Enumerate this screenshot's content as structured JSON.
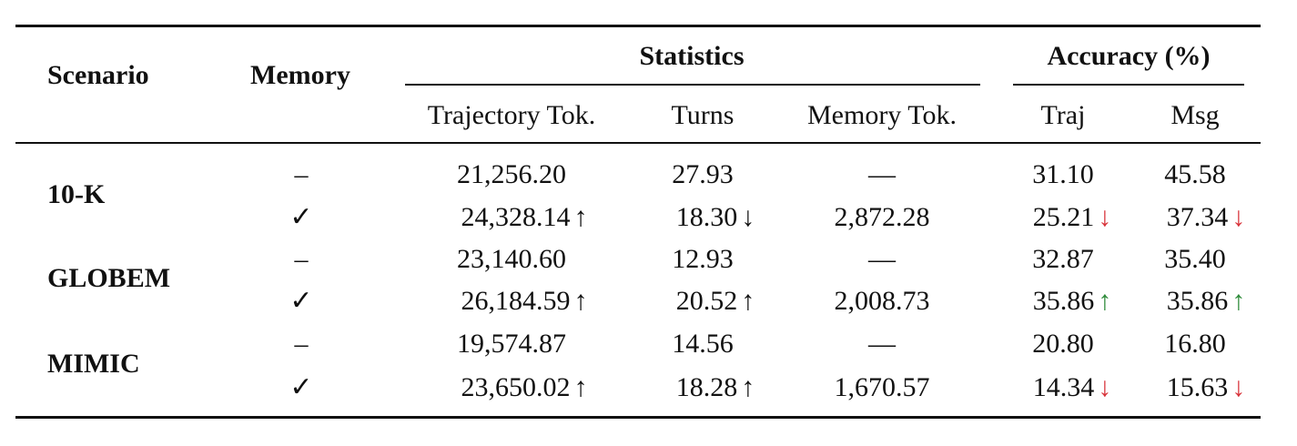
{
  "header": {
    "scenario": "Scenario",
    "memory": "Memory",
    "statistics": "Statistics",
    "accuracy": "Accuracy (%)",
    "trajectory_tok": "Trajectory Tok.",
    "turns": "Turns",
    "memory_tok": "Memory Tok.",
    "traj": "Traj",
    "msg": "Msg"
  },
  "scenarios": [
    {
      "name": "10-K",
      "rows": [
        {
          "memory": "–",
          "trajectory_tok": "21,256.20",
          "traj_tok_arrow": "",
          "turns": "27.93",
          "turns_arrow": "",
          "memory_tok": "—",
          "traj": "31.10",
          "traj_arrow": "",
          "msg": "45.58",
          "msg_arrow": ""
        },
        {
          "memory": "✓",
          "trajectory_tok": "24,328.14",
          "traj_tok_arrow": "↑",
          "turns": "18.30",
          "turns_arrow": "↓",
          "memory_tok": "2,872.28",
          "traj": "25.21",
          "traj_arrow": "↓",
          "msg": "37.34",
          "msg_arrow": "↓"
        }
      ]
    },
    {
      "name": "GLOBEM",
      "rows": [
        {
          "memory": "–",
          "trajectory_tok": "23,140.60",
          "traj_tok_arrow": "",
          "turns": "12.93",
          "turns_arrow": "",
          "memory_tok": "—",
          "traj": "32.87",
          "traj_arrow": "",
          "msg": "35.40",
          "msg_arrow": ""
        },
        {
          "memory": "✓",
          "trajectory_tok": "26,184.59",
          "traj_tok_arrow": "↑",
          "turns": "20.52",
          "turns_arrow": "↑",
          "memory_tok": "2,008.73",
          "traj": "35.86",
          "traj_arrow": "↑",
          "msg": "35.86",
          "msg_arrow": "↑"
        }
      ]
    },
    {
      "name": "MIMIC",
      "rows": [
        {
          "memory": "–",
          "trajectory_tok": "19,574.87",
          "traj_tok_arrow": "",
          "turns": "14.56",
          "turns_arrow": "",
          "memory_tok": "—",
          "traj": "20.80",
          "traj_arrow": "",
          "msg": "16.80",
          "msg_arrow": ""
        },
        {
          "memory": "✓",
          "trajectory_tok": "23,650.02",
          "traj_tok_arrow": "↑",
          "turns": "18.28",
          "turns_arrow": "↑",
          "memory_tok": "1,670.57",
          "traj": "14.34",
          "traj_arrow": "↓",
          "msg": "15.63",
          "msg_arrow": "↓"
        }
      ]
    }
  ],
  "colors": {
    "increase_good": "#2e8b3a",
    "decrease_bad": "#d8333a",
    "neutral_arrow": "#111111"
  }
}
